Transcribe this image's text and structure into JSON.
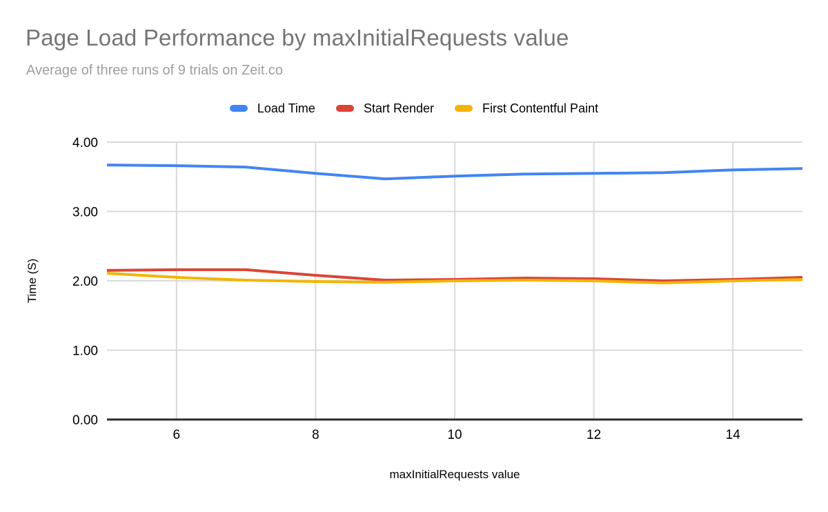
{
  "header": {
    "title": "Page Load Performance by maxInitialRequests value",
    "subtitle": "Average of three runs of 9 trials on Zeit.co"
  },
  "chart_data": {
    "type": "line",
    "title": "Page Load Performance by maxInitialRequests value",
    "subtitle": "Average of three runs of 9 trials on Zeit.co",
    "xlabel": "maxInitialRequests value",
    "ylabel": "Time (S)",
    "xlim": [
      5,
      15
    ],
    "ylim": [
      0,
      4
    ],
    "grid": true,
    "legend_position": "top",
    "x": [
      5,
      6,
      7,
      8,
      9,
      10,
      11,
      12,
      13,
      14,
      15
    ],
    "series": [
      {
        "name": "Load Time",
        "color": "#4285F4",
        "values": [
          3.67,
          3.66,
          3.64,
          3.55,
          3.47,
          3.51,
          3.54,
          3.55,
          3.56,
          3.6,
          3.62
        ]
      },
      {
        "name": "Start Render",
        "color": "#DB4437",
        "values": [
          2.15,
          2.16,
          2.16,
          2.08,
          2.01,
          2.02,
          2.04,
          2.03,
          2.0,
          2.02,
          2.05
        ]
      },
      {
        "name": "First Contentful Paint",
        "color": "#F4B400",
        "values": [
          2.11,
          2.05,
          2.01,
          1.99,
          1.98,
          2.0,
          2.01,
          2.0,
          1.97,
          2.0,
          2.02
        ]
      }
    ],
    "y_ticks": [
      {
        "value": 0,
        "label": "0.00"
      },
      {
        "value": 1,
        "label": "1.00"
      },
      {
        "value": 2,
        "label": "2.00"
      },
      {
        "value": 3,
        "label": "3.00"
      },
      {
        "value": 4,
        "label": "4.00"
      }
    ],
    "x_ticks": [
      {
        "value": 6,
        "label": "6"
      },
      {
        "value": 8,
        "label": "8"
      },
      {
        "value": 10,
        "label": "10"
      },
      {
        "value": 12,
        "label": "12"
      },
      {
        "value": 14,
        "label": "14"
      }
    ],
    "colors": {
      "title": "#757575",
      "subtitle": "#9e9e9e",
      "grid": "#d9d9d9",
      "baseline": "#2b2b2b",
      "tick_label": "#000000"
    }
  }
}
